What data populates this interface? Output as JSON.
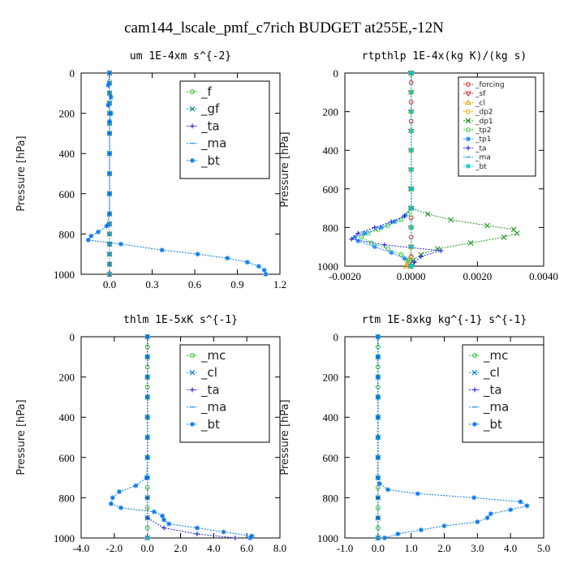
{
  "figure_title": "cam144_lscale_pmf_c7rich  BUDGET at255E,-12N",
  "chart_data": [
    {
      "type": "line",
      "title": "um  1E-4xm s^{-2}",
      "ylabel": "Pressure [hPa]",
      "xlim": [
        -0.2,
        1.2
      ],
      "ylim": [
        1000,
        0
      ],
      "xticks": [
        "0.0",
        "0.3",
        "0.6",
        "0.9",
        "1.2"
      ],
      "xtick_values": [
        0,
        0.3,
        0.6,
        0.9,
        1.2
      ],
      "yticks": [
        "0",
        "200",
        "400",
        "600",
        "800",
        "1000"
      ],
      "ytick_values": [
        0,
        200,
        400,
        600,
        800,
        1000
      ],
      "legend": "top-right",
      "legend_size": "large",
      "series": [
        {
          "name": "_f",
          "color": "#22bb22",
          "marker": "o",
          "y": [
            0,
            50,
            100,
            150,
            200,
            250,
            300,
            400,
            500,
            600,
            700,
            750,
            800,
            850,
            900,
            950,
            1000
          ],
          "x": [
            0,
            0,
            0,
            0,
            0,
            0,
            0,
            0,
            0,
            0,
            0,
            0,
            0,
            0,
            0,
            0,
            0
          ]
        },
        {
          "name": "_gf",
          "color": "#118888",
          "marker": "x",
          "y": [
            0,
            50,
            100,
            150,
            200,
            250,
            300,
            400,
            500,
            600,
            700,
            750,
            800,
            850,
            900,
            950,
            1000
          ],
          "x": [
            0,
            0,
            0,
            0,
            0,
            0,
            0,
            0,
            0,
            0,
            0,
            0,
            0,
            0,
            0,
            0,
            0
          ]
        },
        {
          "name": "_ta",
          "color": "#2222dd",
          "marker": "+",
          "y": [
            0,
            50,
            100,
            150,
            200,
            250,
            300,
            400,
            500,
            600,
            700,
            750,
            800,
            850,
            900,
            950,
            1000
          ],
          "x": [
            0,
            0,
            0,
            0,
            0,
            0,
            0,
            0,
            0,
            0,
            0,
            0,
            0,
            0,
            0,
            0,
            0
          ]
        },
        {
          "name": "_ma",
          "color": "#3399ee",
          "marker": "-",
          "y": [
            0,
            50,
            100,
            150,
            200,
            250,
            300,
            400,
            500,
            600,
            700,
            750,
            800,
            850,
            900,
            950,
            1000
          ],
          "x": [
            0,
            0,
            0,
            0,
            0,
            0,
            0,
            0,
            0,
            0,
            0,
            0,
            0,
            0,
            0,
            0,
            0
          ]
        },
        {
          "name": "_bt",
          "color": "#0077ee",
          "marker": "*",
          "y": [
            0,
            60,
            120,
            160,
            200,
            240,
            300,
            400,
            500,
            600,
            700,
            760,
            790,
            810,
            830,
            850,
            880,
            900,
            920,
            940,
            960,
            980,
            1000
          ],
          "x": [
            0,
            -0.01,
            0.01,
            -0.01,
            0.01,
            0,
            0,
            0,
            0,
            0,
            0,
            -0.02,
            -0.08,
            -0.13,
            -0.15,
            0.08,
            0.37,
            0.62,
            0.83,
            0.97,
            1.05,
            1.09,
            1.1
          ]
        }
      ]
    },
    {
      "type": "line",
      "title": "rtpthlp  1E-4x(kg K)/(kg s)",
      "ylabel": "Pressure [hPa]",
      "xlim": [
        -0.002,
        0.004
      ],
      "ylim": [
        1000,
        0
      ],
      "xticks": [
        "-0.0020",
        "0.0000",
        "0.0020",
        "0.0040"
      ],
      "xtick_values": [
        -0.002,
        0,
        0.002,
        0.004
      ],
      "yticks": [
        "0",
        "200",
        "400",
        "600",
        "800",
        "1000"
      ],
      "ytick_values": [
        0,
        200,
        400,
        600,
        800,
        1000
      ],
      "legend": "top-right",
      "legend_size": "small",
      "series": [
        {
          "name": "_forcing",
          "color": "#dd2222",
          "marker": "o",
          "y": [
            0,
            50,
            100,
            150,
            200,
            250,
            300,
            400,
            500,
            600,
            700,
            750,
            800,
            850,
            900,
            950,
            1000
          ],
          "x": [
            0,
            0,
            0,
            0,
            0,
            0,
            0,
            0,
            0,
            0,
            0,
            0,
            0,
            0,
            0,
            0,
            0
          ]
        },
        {
          "name": "_sf",
          "color": "#cc2222",
          "marker": "v",
          "y": [
            0,
            100,
            200,
            300,
            400,
            500,
            600,
            700,
            800,
            900,
            1000
          ],
          "x": [
            0,
            0,
            0,
            0,
            0,
            0,
            0,
            0,
            0,
            0,
            0
          ]
        },
        {
          "name": "_cl",
          "color": "#e0a000",
          "marker": "^",
          "y": [
            0,
            100,
            200,
            300,
            400,
            500,
            600,
            700,
            800,
            900,
            960,
            980,
            1000
          ],
          "x": [
            0,
            0,
            0,
            0,
            0,
            0,
            0,
            0,
            0,
            0,
            -5e-05,
            -0.0001,
            -0.00015
          ]
        },
        {
          "name": "_dp2",
          "color": "#ddaa00",
          "marker": "o",
          "y": [
            0,
            100,
            200,
            300,
            400,
            500,
            600,
            700,
            800,
            900,
            1000
          ],
          "x": [
            0,
            0,
            0,
            0,
            0,
            0,
            0,
            0,
            0,
            0,
            0
          ]
        },
        {
          "name": "_dp1",
          "color": "#229922",
          "marker": "x",
          "y": [
            0,
            600,
            700,
            730,
            760,
            790,
            810,
            830,
            850,
            880,
            910,
            940,
            970,
            1000
          ],
          "x": [
            0,
            0,
            0,
            0.0005,
            0.0012,
            0.0023,
            0.0031,
            0.0032,
            0.0028,
            0.0018,
            0.0008,
            0.0003,
            5e-05,
            0
          ]
        },
        {
          "name": "_tp2",
          "color": "#33cc33",
          "marker": "o",
          "y": [
            0,
            600,
            700,
            730,
            760,
            790,
            810,
            830,
            850,
            880,
            910,
            940,
            970,
            1000
          ],
          "x": [
            0,
            0,
            0,
            -0.0001,
            -0.0003,
            -0.0007,
            -0.001,
            -0.0013,
            -0.0015,
            -0.0012,
            -0.0007,
            -0.0003,
            -0.0001,
            0
          ]
        },
        {
          "name": "_tp1",
          "color": "#2288ff",
          "marker": "*",
          "y": [
            0,
            600,
            700,
            740,
            770,
            800,
            830,
            850,
            870,
            900,
            930,
            960,
            1000
          ],
          "x": [
            0,
            0,
            0,
            -0.0002,
            -0.0005,
            -0.0009,
            -0.0014,
            -0.0017,
            -0.0016,
            -0.0011,
            -0.0006,
            -0.0002,
            0
          ]
        },
        {
          "name": "_ta",
          "color": "#2222dd",
          "marker": "+",
          "y": [
            0,
            600,
            700,
            740,
            770,
            800,
            830,
            860,
            890,
            920,
            950,
            980,
            1000
          ],
          "x": [
            0,
            0,
            0,
            -0.0002,
            -0.0006,
            -0.0011,
            -0.0016,
            -0.0018,
            -0.0008,
            0.0009,
            0.0003,
            0.0001,
            0
          ]
        },
        {
          "name": "_ma",
          "color": "#3399ee",
          "marker": "-",
          "y": [
            0,
            1000
          ],
          "x": [
            0,
            0
          ]
        },
        {
          "name": "_bt",
          "color": "#00cccc",
          "marker": "*",
          "y": [
            0,
            100,
            200,
            300,
            400,
            500,
            600,
            700,
            800,
            900,
            1000
          ],
          "x": [
            0,
            0,
            0,
            0,
            0,
            0,
            0,
            0,
            0,
            0,
            0
          ]
        }
      ]
    },
    {
      "type": "line",
      "title": "thlm  1E-5xK s^{-1}",
      "ylabel": "Pressure [hPa]",
      "xlim": [
        -4,
        8
      ],
      "ylim": [
        1000,
        0
      ],
      "xticks": [
        "-4.0",
        "-2.0",
        "0.0",
        "2.0",
        "4.0",
        "6.0",
        "8.0"
      ],
      "xtick_values": [
        -4,
        -2,
        0,
        2,
        4,
        6,
        8
      ],
      "yticks": [
        "0",
        "200",
        "400",
        "600",
        "800",
        "1000"
      ],
      "ytick_values": [
        0,
        200,
        400,
        600,
        800,
        1000
      ],
      "legend": "top-right",
      "legend_size": "large",
      "series": [
        {
          "name": "_mc",
          "color": "#22bb22",
          "marker": "o",
          "y": [
            0,
            50,
            100,
            150,
            200,
            250,
            300,
            400,
            500,
            600,
            700,
            750,
            800,
            850,
            900,
            950,
            1000
          ],
          "x": [
            0,
            0,
            0,
            0,
            0,
            0,
            0,
            0,
            0,
            0,
            0,
            0,
            0,
            0,
            0,
            0,
            0
          ]
        },
        {
          "name": "_cl",
          "color": "#1188cc",
          "marker": "x",
          "y": [
            0,
            100,
            200,
            300,
            400,
            500,
            600,
            700,
            800,
            900,
            1000
          ],
          "x": [
            0,
            0,
            0,
            0,
            0,
            0,
            0,
            0,
            0,
            0,
            0
          ]
        },
        {
          "name": "_ta",
          "color": "#2222dd",
          "marker": "+",
          "y": [
            0,
            100,
            200,
            300,
            400,
            500,
            600,
            700,
            800,
            900,
            950,
            980,
            1000
          ],
          "x": [
            0,
            0,
            0,
            0,
            0,
            0,
            0,
            0,
            0,
            0,
            1.0,
            3.0,
            5.3
          ]
        },
        {
          "name": "_ma",
          "color": "#3399ee",
          "marker": "-",
          "y": [
            0,
            1000
          ],
          "x": [
            0,
            0
          ]
        },
        {
          "name": "_bt",
          "color": "#0077ee",
          "marker": "*",
          "y": [
            0,
            100,
            200,
            300,
            400,
            500,
            600,
            700,
            740,
            770,
            800,
            830,
            850,
            870,
            890,
            910,
            930,
            950,
            970,
            990,
            1000
          ],
          "x": [
            0,
            0,
            0,
            0,
            0,
            0,
            0,
            -0.05,
            -0.7,
            -1.7,
            -2.1,
            -2.2,
            -1.6,
            0.4,
            0.9,
            1.0,
            1.3,
            3.0,
            4.6,
            6.3,
            6.2
          ]
        }
      ]
    },
    {
      "type": "line",
      "title": "rtm  1E-8xkg kg^{-1} s^{-1}",
      "ylabel": "Pressure [hPa]",
      "xlim": [
        -1,
        5
      ],
      "ylim": [
        1000,
        0
      ],
      "xticks": [
        "-1.0",
        "0.0",
        "1.0",
        "2.0",
        "3.0",
        "4.0",
        "5.0"
      ],
      "xtick_values": [
        -1,
        0,
        1,
        2,
        3,
        4,
        5
      ],
      "yticks": [
        "0",
        "200",
        "400",
        "600",
        "800",
        "1000"
      ],
      "ytick_values": [
        0,
        200,
        400,
        600,
        800,
        1000
      ],
      "legend": "top-right",
      "legend_size": "large",
      "series": [
        {
          "name": "_mc",
          "color": "#22bb22",
          "marker": "o",
          "y": [
            0,
            50,
            100,
            150,
            200,
            250,
            300,
            400,
            500,
            600,
            700,
            750,
            800,
            850,
            900,
            950,
            1000
          ],
          "x": [
            0,
            0,
            0,
            0,
            0,
            0,
            0,
            0,
            0,
            0,
            0,
            0,
            0,
            0,
            0,
            0,
            0
          ]
        },
        {
          "name": "_cl",
          "color": "#1188cc",
          "marker": "x",
          "y": [
            0,
            100,
            200,
            300,
            400,
            500,
            600,
            700,
            800,
            900,
            1000
          ],
          "x": [
            0,
            0,
            0,
            0,
            0,
            0,
            0,
            0,
            0,
            0,
            0
          ]
        },
        {
          "name": "_ta",
          "color": "#2222dd",
          "marker": "+",
          "y": [
            0,
            100,
            200,
            300,
            400,
            500,
            600,
            700,
            800,
            900,
            1000
          ],
          "x": [
            0,
            0,
            0,
            0,
            0,
            0,
            0,
            0,
            0,
            0,
            0
          ]
        },
        {
          "name": "_ma",
          "color": "#3399ee",
          "marker": "-",
          "y": [
            0,
            1000
          ],
          "x": [
            0,
            0
          ]
        },
        {
          "name": "_bt",
          "color": "#0077ee",
          "marker": "*",
          "y": [
            0,
            100,
            200,
            300,
            400,
            500,
            600,
            700,
            730,
            760,
            780,
            800,
            820,
            840,
            860,
            880,
            900,
            920,
            940,
            960,
            980,
            1000
          ],
          "x": [
            0,
            0,
            0,
            0,
            0,
            0,
            0,
            0,
            0.05,
            0.3,
            1.2,
            2.9,
            4.3,
            4.5,
            4.0,
            3.4,
            3.3,
            3.0,
            2.0,
            1.3,
            0.6,
            0.2
          ]
        }
      ]
    }
  ]
}
